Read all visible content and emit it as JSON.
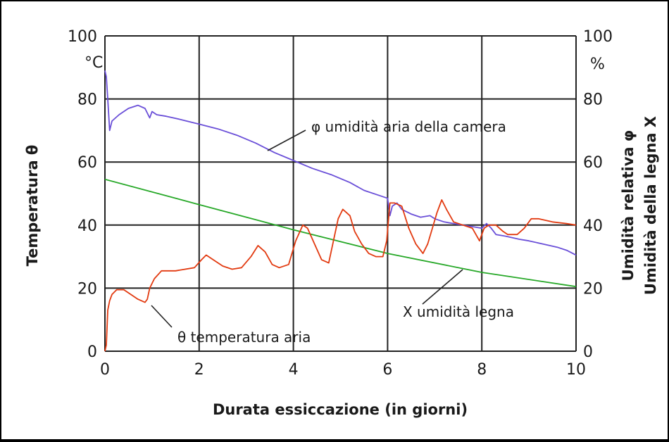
{
  "chart_data": {
    "type": "line",
    "title": "",
    "xlabel": "Durata essiccazione (in giorni)",
    "ylabel_left": "Temperatura θ",
    "ylabel_right_line1": "Umidità relativa φ",
    "ylabel_right_line2": "Umidità della legna X",
    "unit_left": "°C",
    "unit_right": "%",
    "xlim": [
      0,
      10
    ],
    "ylim": [
      0,
      100
    ],
    "x_ticks": [
      "0",
      "2",
      "4",
      "6",
      "8",
      "10"
    ],
    "y_ticks_left": [
      "0",
      "20",
      "40",
      "60",
      "80",
      "100"
    ],
    "y_ticks_right": [
      "0",
      "20",
      "40",
      "60",
      "80",
      "100"
    ],
    "grid": true,
    "annotations": [
      {
        "text": "φ umidità aria della camera",
        "series": "phi"
      },
      {
        "text": "X  umidità legna",
        "series": "X"
      },
      {
        "text": "θ temperatura aria",
        "series": "theta"
      }
    ],
    "series": [
      {
        "id": "phi",
        "color": "#6a4fd8",
        "x": [
          0,
          0.03,
          0.06,
          0.1,
          0.15,
          0.3,
          0.5,
          0.7,
          0.85,
          0.95,
          1.0,
          1.1,
          1.3,
          1.6,
          2.0,
          2.4,
          2.8,
          3.2,
          3.6,
          4.0,
          4.4,
          4.8,
          5.2,
          5.5,
          5.8,
          6.0,
          6.05,
          6.1,
          6.2,
          6.3,
          6.5,
          6.7,
          6.9,
          7.0,
          7.2,
          7.4,
          7.6,
          7.8,
          8.0,
          8.1,
          8.2,
          8.3,
          8.5,
          8.8,
          9.0,
          9.3,
          9.6,
          9.8,
          10.0
        ],
        "values": [
          89,
          87,
          80,
          70,
          73,
          75,
          77,
          78,
          77,
          74,
          76,
          75,
          74.5,
          73.5,
          72,
          70.5,
          68.5,
          66,
          63,
          60.5,
          58,
          56,
          53.5,
          51,
          49.5,
          48.5,
          43,
          46,
          47,
          45,
          43.5,
          42.5,
          43,
          42,
          41,
          40.5,
          40,
          39.5,
          39,
          40.5,
          39,
          37,
          36.5,
          35.5,
          35,
          34,
          33,
          32,
          30.5
        ]
      },
      {
        "id": "X",
        "color": "#27a828",
        "x": [
          0,
          2,
          4,
          6,
          8,
          10
        ],
        "values": [
          54.5,
          46.5,
          38.5,
          31,
          25,
          20.5
        ]
      },
      {
        "id": "theta",
        "color": "#e23a10",
        "x": [
          0,
          0.03,
          0.06,
          0.1,
          0.15,
          0.25,
          0.4,
          0.55,
          0.7,
          0.85,
          0.9,
          0.95,
          1.05,
          1.2,
          1.5,
          1.9,
          2.05,
          2.15,
          2.3,
          2.5,
          2.7,
          2.9,
          3.1,
          3.25,
          3.4,
          3.55,
          3.7,
          3.9,
          4.05,
          4.2,
          4.3,
          4.45,
          4.6,
          4.75,
          4.85,
          4.95,
          5.05,
          5.2,
          5.3,
          5.45,
          5.6,
          5.75,
          5.9,
          5.98,
          6.05,
          6.15,
          6.3,
          6.45,
          6.6,
          6.75,
          6.85,
          6.95,
          7.05,
          7.15,
          7.25,
          7.4,
          7.6,
          7.8,
          7.95,
          8.0,
          8.05,
          8.15,
          8.3,
          8.45,
          8.55,
          8.75,
          8.9,
          9.05,
          9.2,
          9.5,
          9.8,
          10.0
        ],
        "values": [
          0,
          2,
          13,
          16,
          18,
          19.5,
          19.5,
          18,
          16.5,
          15.5,
          16.5,
          20,
          23,
          25.5,
          25.5,
          26.5,
          29,
          30.5,
          29,
          27,
          26,
          26.5,
          30,
          33.5,
          31.5,
          27.5,
          26.5,
          27.5,
          35,
          40,
          39,
          34,
          29,
          28,
          35,
          42,
          45,
          43,
          38,
          34,
          31,
          30,
          30,
          35,
          47,
          47,
          46,
          39,
          34,
          31,
          34,
          39,
          44,
          48,
          45,
          41,
          40,
          39,
          35,
          37,
          39,
          40,
          40,
          38,
          37,
          37,
          39,
          42,
          42,
          41,
          40.5,
          40
        ]
      }
    ]
  }
}
